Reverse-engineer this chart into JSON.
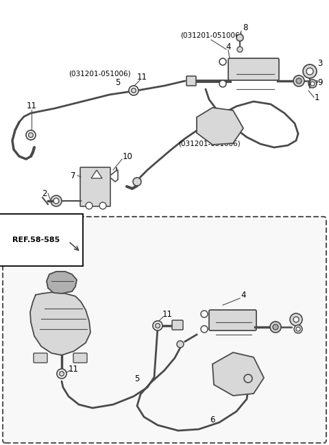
{
  "background_color": "#ffffff",
  "line_color": "#4a4a4a",
  "text_color": "#000000",
  "light_gray": "#d8d8d8",
  "mid_gray": "#b0b0b0",
  "figsize": [
    4.8,
    6.49
  ],
  "dpi": 100
}
